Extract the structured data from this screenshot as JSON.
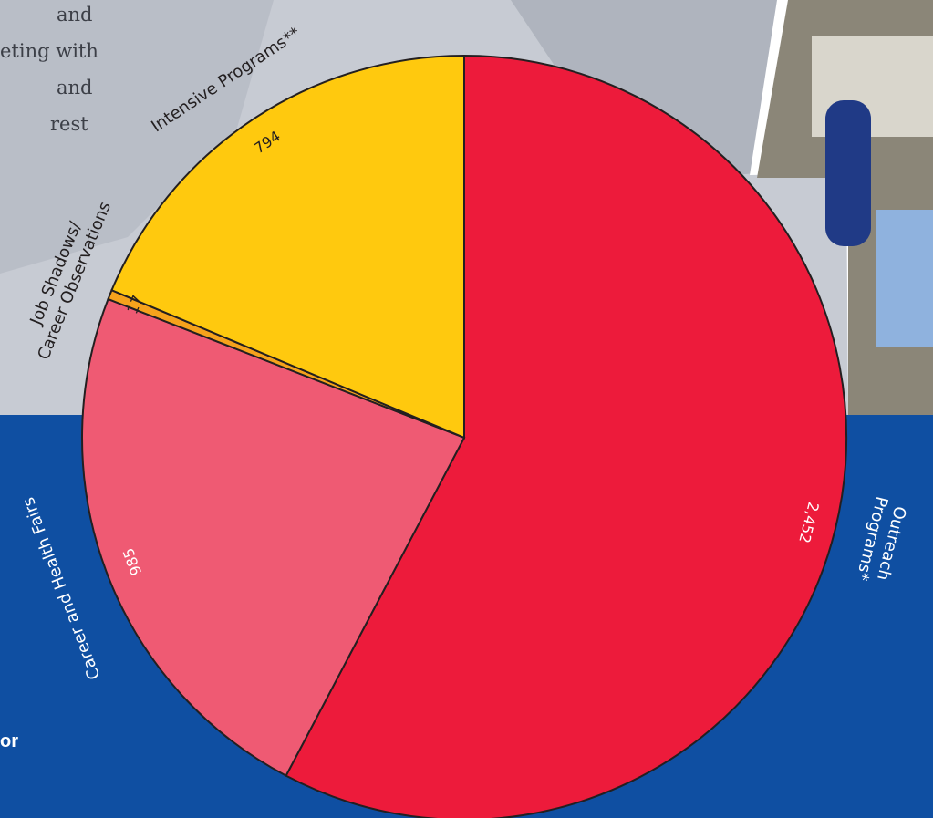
{
  "background_text": [
    "and",
    "eting with",
    "and",
    "rest",
    "or"
  ],
  "chart_data": {
    "type": "pie",
    "categories": [
      "Outreach Programs*",
      "Career and Health Fairs",
      "Job Shadows/\nCareer Observations",
      "Intensive Programs**"
    ],
    "values": [
      2452,
      985,
      17,
      794
    ],
    "value_labels": [
      "2,452",
      "985",
      "17",
      "794"
    ],
    "colors": [
      "#ed1b3b",
      "#ef5a73",
      "#f6a21c",
      "#ffc90e"
    ]
  }
}
